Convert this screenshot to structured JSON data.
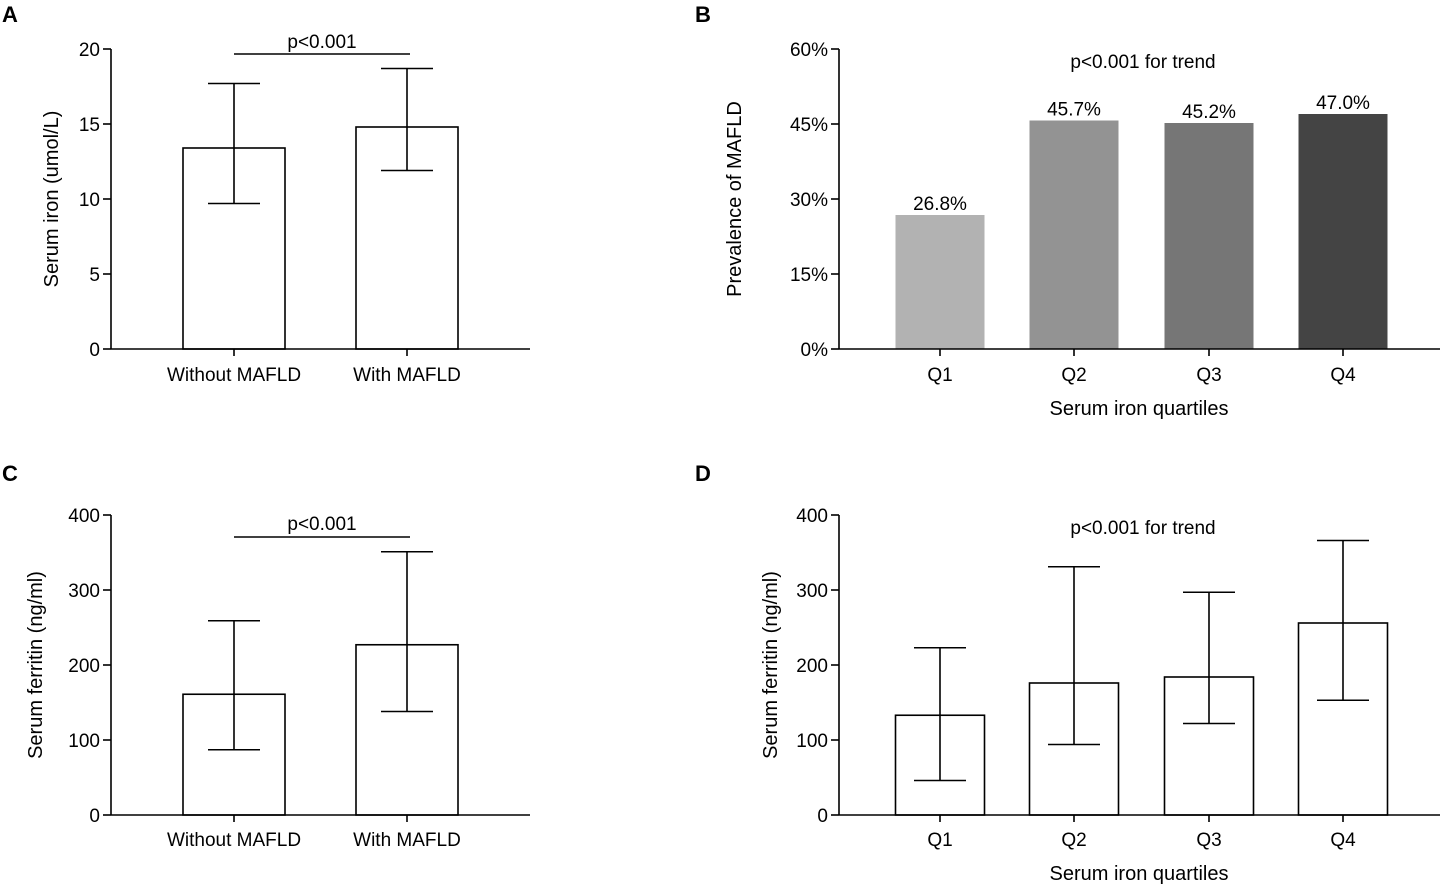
{
  "chart_data": [
    {
      "panel": "A",
      "type": "bar",
      "categories": [
        "Without MAFLD",
        "With MAFLD"
      ],
      "values": [
        13.4,
        14.8
      ],
      "error_low": [
        9.7,
        11.9
      ],
      "error_high": [
        17.7,
        18.7
      ],
      "ylabel": "Serum iron (umol/L)",
      "xlabel": "",
      "ylim": [
        0,
        20
      ],
      "yticks": [
        0,
        5,
        10,
        15,
        20
      ],
      "ytick_labels": [
        "0",
        "5",
        "10",
        "15",
        "20"
      ],
      "annotation": "p<0.001",
      "bar_fill": "#ffffff",
      "bar_fills": [
        "#ffffff",
        "#ffffff"
      ]
    },
    {
      "panel": "B",
      "type": "bar",
      "categories": [
        "Q1",
        "Q2",
        "Q3",
        "Q4"
      ],
      "values": [
        26.8,
        45.7,
        45.2,
        47.0
      ],
      "value_labels": [
        "26.8%",
        "45.7%",
        "45.2%",
        "47.0%"
      ],
      "ylabel": "Prevalence of MAFLD",
      "xlabel": "Serum iron quartiles",
      "ylim": [
        0,
        60
      ],
      "yticks": [
        0,
        15,
        30,
        45,
        60
      ],
      "ytick_labels": [
        "0%",
        "15%",
        "30%",
        "45%",
        "60%"
      ],
      "annotation": "p<0.001 for trend",
      "bar_fills": [
        "#b2b2b2",
        "#939393",
        "#767676",
        "#444444"
      ]
    },
    {
      "panel": "C",
      "type": "bar",
      "categories": [
        "Without MAFLD",
        "With MAFLD"
      ],
      "values": [
        161,
        227
      ],
      "error_low": [
        87,
        138
      ],
      "error_high": [
        259,
        351
      ],
      "ylabel": "Serum ferritin (ng/ml)",
      "xlabel": "",
      "ylim": [
        0,
        400
      ],
      "yticks": [
        0,
        100,
        200,
        300,
        400
      ],
      "ytick_labels": [
        "0",
        "100",
        "200",
        "300",
        "400"
      ],
      "annotation": "p<0.001",
      "bar_fills": [
        "#ffffff",
        "#ffffff"
      ]
    },
    {
      "panel": "D",
      "type": "bar",
      "categories": [
        "Q1",
        "Q2",
        "Q3",
        "Q4"
      ],
      "values": [
        133,
        176,
        184,
        256
      ],
      "error_low": [
        46,
        94,
        122,
        153
      ],
      "error_high": [
        223,
        331,
        297,
        366
      ],
      "ylabel": "Serum ferritin (ng/ml)",
      "xlabel": "Serum iron quartiles",
      "ylim": [
        0,
        400
      ],
      "yticks": [
        0,
        100,
        200,
        300,
        400
      ],
      "ytick_labels": [
        "0",
        "100",
        "200",
        "300",
        "400"
      ],
      "annotation": "p<0.001 for trend",
      "bar_fills": [
        "#ffffff",
        "#ffffff",
        "#ffffff",
        "#ffffff"
      ]
    }
  ]
}
